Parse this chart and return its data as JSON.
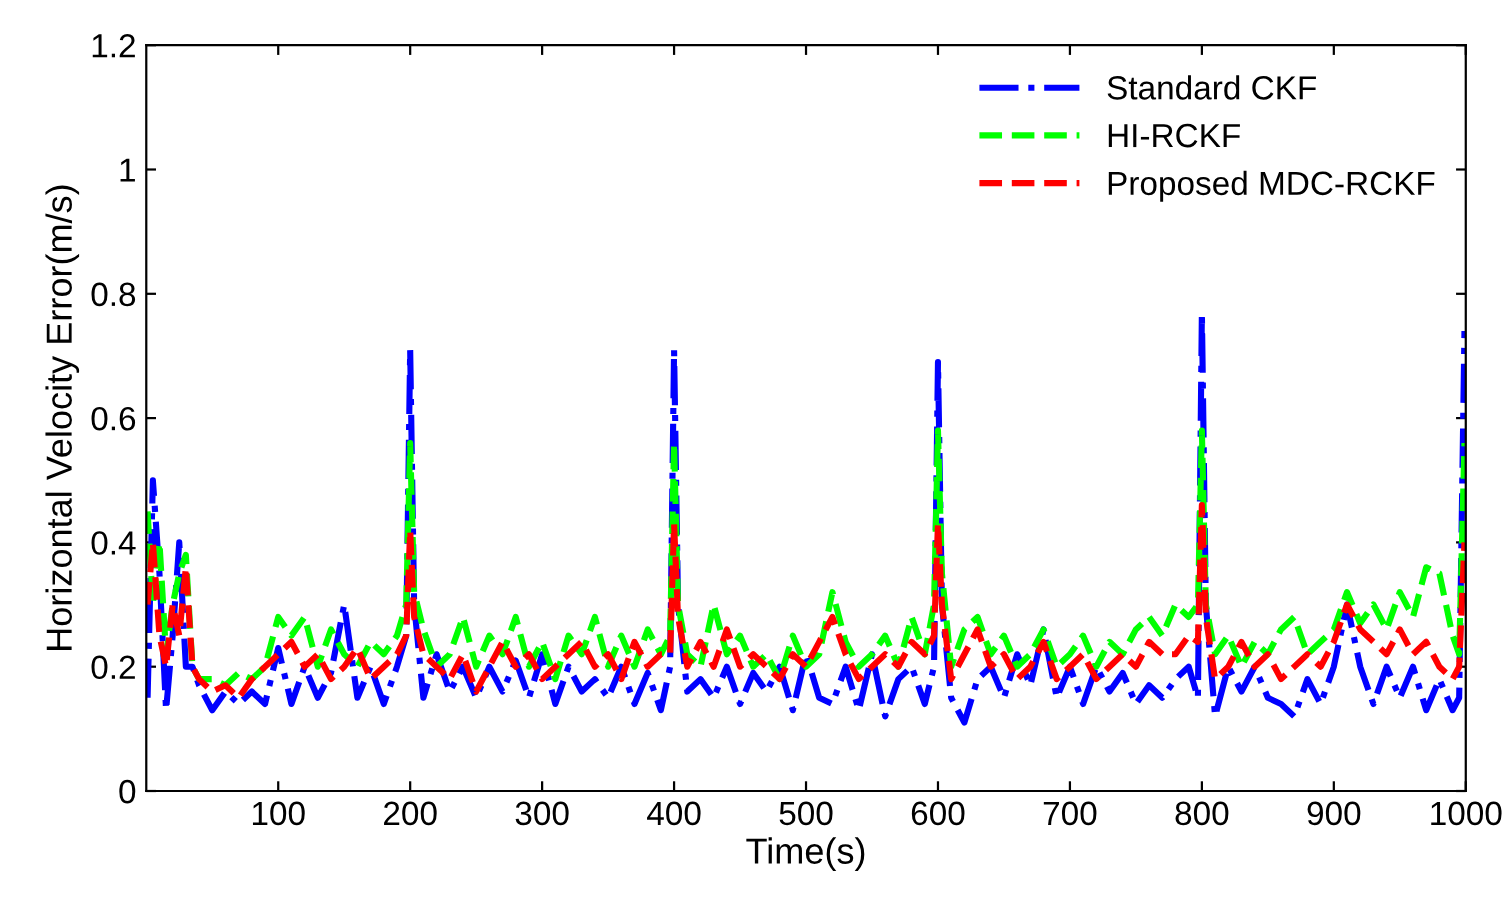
{
  "chart_data": {
    "type": "line",
    "xlabel": "Time(s)",
    "ylabel": "Horizontal Velocity Error(m/s)",
    "xlim": [
      0,
      1000
    ],
    "xticks": [
      100,
      200,
      300,
      400,
      500,
      600,
      700,
      800,
      900,
      1000
    ],
    "ylim": [
      0,
      1.2
    ],
    "yticks": [
      0,
      0.2,
      0.4,
      0.6,
      0.8,
      1,
      1.2
    ],
    "grid": false,
    "legend": "top right",
    "marker": "none",
    "x": [
      1,
      5,
      10,
      15,
      20,
      25,
      30,
      35,
      40,
      50,
      60,
      70,
      80,
      90,
      100,
      110,
      120,
      130,
      140,
      150,
      160,
      170,
      180,
      190,
      197,
      200,
      203,
      210,
      220,
      230,
      240,
      250,
      260,
      270,
      280,
      290,
      300,
      310,
      320,
      330,
      340,
      350,
      360,
      370,
      380,
      390,
      397,
      400,
      403,
      410,
      420,
      430,
      440,
      450,
      460,
      470,
      480,
      490,
      500,
      510,
      520,
      530,
      540,
      550,
      560,
      570,
      580,
      590,
      597,
      600,
      603,
      610,
      620,
      630,
      640,
      650,
      660,
      670,
      680,
      690,
      700,
      710,
      720,
      730,
      740,
      750,
      760,
      770,
      780,
      790,
      797,
      800,
      803,
      810,
      820,
      830,
      840,
      850,
      860,
      870,
      880,
      890,
      900,
      910,
      920,
      930,
      940,
      950,
      960,
      970,
      980,
      990,
      995,
      999
    ],
    "series": [
      {
        "name": "Standard CKF",
        "color": "#0000ff",
        "line_style": "dashdot",
        "values": [
          0.15,
          0.5,
          0.35,
          0.13,
          0.25,
          0.4,
          0.2,
          0.2,
          0.17,
          0.13,
          0.16,
          0.14,
          0.16,
          0.14,
          0.23,
          0.14,
          0.2,
          0.15,
          0.19,
          0.3,
          0.15,
          0.2,
          0.14,
          0.2,
          0.25,
          0.71,
          0.3,
          0.15,
          0.22,
          0.16,
          0.2,
          0.15,
          0.2,
          0.16,
          0.21,
          0.15,
          0.22,
          0.14,
          0.2,
          0.16,
          0.18,
          0.15,
          0.2,
          0.14,
          0.19,
          0.13,
          0.2,
          0.71,
          0.3,
          0.16,
          0.18,
          0.15,
          0.2,
          0.14,
          0.19,
          0.16,
          0.2,
          0.13,
          0.22,
          0.15,
          0.14,
          0.2,
          0.13,
          0.22,
          0.12,
          0.18,
          0.2,
          0.14,
          0.2,
          0.69,
          0.3,
          0.15,
          0.11,
          0.18,
          0.2,
          0.15,
          0.22,
          0.17,
          0.26,
          0.15,
          0.2,
          0.14,
          0.2,
          0.16,
          0.19,
          0.14,
          0.17,
          0.15,
          0.18,
          0.2,
          0.15,
          0.77,
          0.3,
          0.12,
          0.2,
          0.16,
          0.2,
          0.15,
          0.14,
          0.12,
          0.18,
          0.14,
          0.2,
          0.3,
          0.2,
          0.14,
          0.2,
          0.15,
          0.2,
          0.13,
          0.18,
          0.13,
          0.15,
          0.74
        ]
      },
      {
        "name": "HI-RCKF",
        "color": "#00ff00",
        "line_style": "dashed",
        "values": [
          0.45,
          0.3,
          0.4,
          0.22,
          0.3,
          0.35,
          0.38,
          0.2,
          0.18,
          0.18,
          0.17,
          0.19,
          0.18,
          0.2,
          0.28,
          0.25,
          0.28,
          0.2,
          0.26,
          0.22,
          0.2,
          0.24,
          0.22,
          0.25,
          0.3,
          0.56,
          0.32,
          0.26,
          0.2,
          0.22,
          0.28,
          0.2,
          0.25,
          0.22,
          0.28,
          0.2,
          0.24,
          0.18,
          0.25,
          0.22,
          0.28,
          0.2,
          0.25,
          0.2,
          0.26,
          0.22,
          0.25,
          0.56,
          0.3,
          0.22,
          0.2,
          0.3,
          0.22,
          0.25,
          0.2,
          0.22,
          0.18,
          0.25,
          0.2,
          0.22,
          0.32,
          0.24,
          0.2,
          0.22,
          0.25,
          0.2,
          0.28,
          0.22,
          0.3,
          0.58,
          0.35,
          0.2,
          0.26,
          0.28,
          0.22,
          0.25,
          0.2,
          0.22,
          0.26,
          0.2,
          0.22,
          0.25,
          0.2,
          0.24,
          0.22,
          0.26,
          0.28,
          0.25,
          0.3,
          0.28,
          0.3,
          0.58,
          0.3,
          0.22,
          0.25,
          0.2,
          0.24,
          0.22,
          0.26,
          0.28,
          0.22,
          0.24,
          0.26,
          0.32,
          0.27,
          0.3,
          0.26,
          0.32,
          0.28,
          0.36,
          0.35,
          0.25,
          0.22,
          0.56
        ]
      },
      {
        "name": "Proposed MDC-RCKF",
        "color": "#ff0000",
        "line_style": "dashed",
        "values": [
          0.3,
          0.4,
          0.25,
          0.2,
          0.3,
          0.25,
          0.36,
          0.2,
          0.18,
          0.16,
          0.17,
          0.15,
          0.18,
          0.2,
          0.22,
          0.24,
          0.2,
          0.22,
          0.18,
          0.2,
          0.23,
          0.18,
          0.2,
          0.22,
          0.25,
          0.42,
          0.28,
          0.22,
          0.2,
          0.18,
          0.22,
          0.16,
          0.2,
          0.24,
          0.2,
          0.22,
          0.18,
          0.2,
          0.22,
          0.24,
          0.2,
          0.22,
          0.18,
          0.24,
          0.2,
          0.22,
          0.22,
          0.43,
          0.28,
          0.2,
          0.24,
          0.2,
          0.26,
          0.2,
          0.22,
          0.2,
          0.18,
          0.22,
          0.2,
          0.24,
          0.28,
          0.22,
          0.18,
          0.2,
          0.22,
          0.2,
          0.24,
          0.22,
          0.25,
          0.43,
          0.3,
          0.18,
          0.22,
          0.26,
          0.2,
          0.22,
          0.18,
          0.2,
          0.24,
          0.18,
          0.2,
          0.22,
          0.18,
          0.2,
          0.22,
          0.2,
          0.24,
          0.22,
          0.22,
          0.25,
          0.24,
          0.46,
          0.28,
          0.18,
          0.2,
          0.24,
          0.2,
          0.22,
          0.18,
          0.2,
          0.22,
          0.2,
          0.24,
          0.3,
          0.26,
          0.24,
          0.22,
          0.26,
          0.22,
          0.24,
          0.2,
          0.18,
          0.2,
          0.4
        ]
      }
    ]
  }
}
